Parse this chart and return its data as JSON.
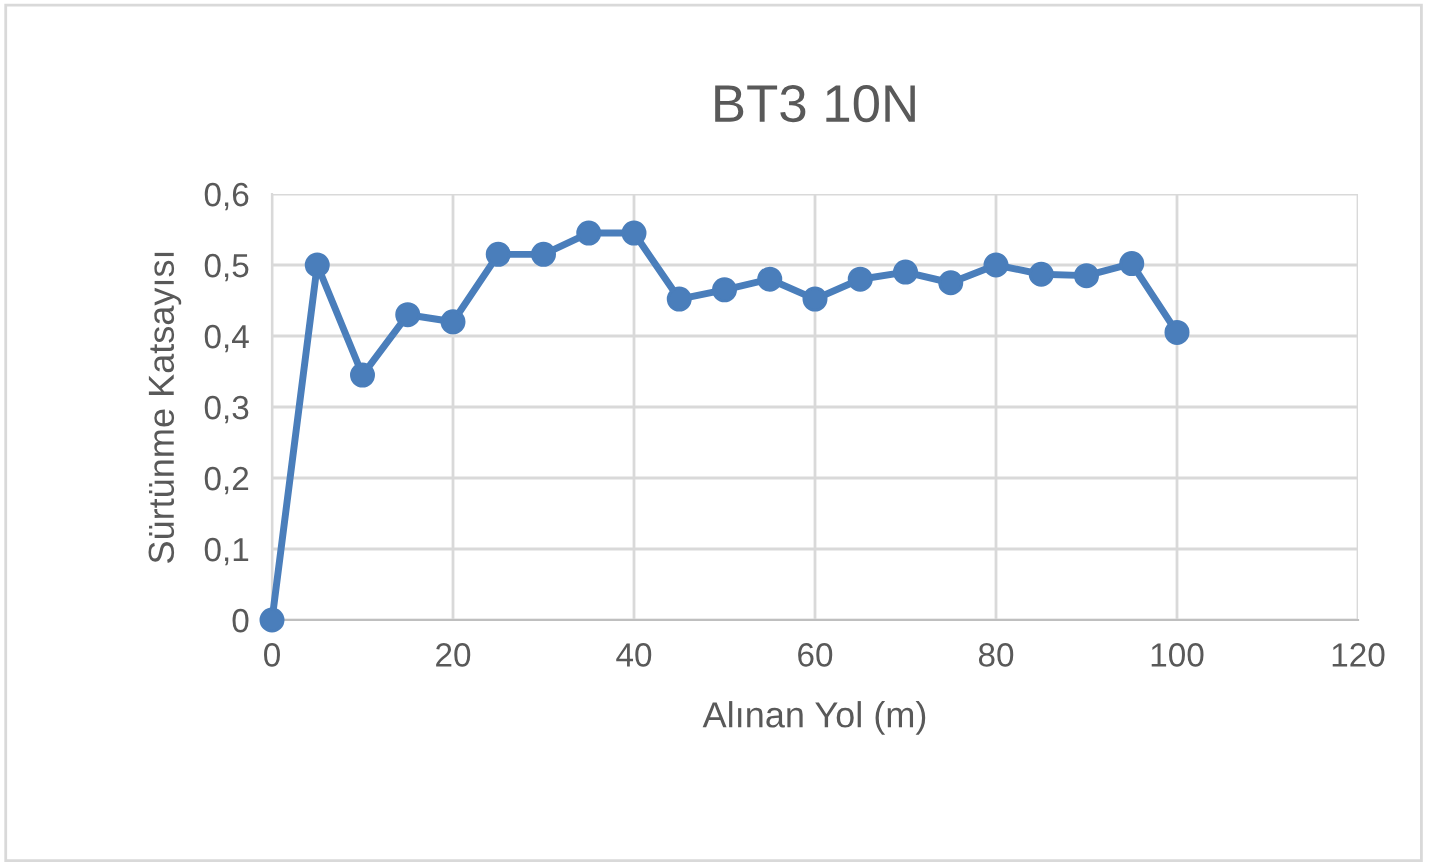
{
  "chart_data": {
    "type": "line",
    "title": "BT3 10N",
    "xlabel": "Alınan Yol (m)",
    "ylabel": "Sürtünme Katsayısı",
    "x": [
      0,
      5,
      10,
      15,
      20,
      25,
      30,
      35,
      40,
      45,
      50,
      55,
      60,
      65,
      70,
      75,
      80,
      85,
      90,
      95,
      100
    ],
    "series": [
      {
        "color": "#4a7ebb",
        "values": [
          0,
          0.5,
          0.345,
          0.43,
          0.42,
          0.515,
          0.515,
          0.545,
          0.545,
          0.452,
          0.465,
          0.48,
          0.452,
          0.48,
          0.49,
          0.475,
          0.5,
          0.487,
          0.485,
          0.502,
          0.405
        ]
      }
    ],
    "xlim": [
      0,
      120
    ],
    "xticks": [
      0,
      20,
      40,
      60,
      80,
      100,
      120
    ],
    "ylim": [
      0,
      0.6
    ],
    "yticks": [
      {
        "value": 0,
        "label": "0"
      },
      {
        "value": 0.1,
        "label": "0,1"
      },
      {
        "value": 0.2,
        "label": "0,2"
      },
      {
        "value": 0.3,
        "label": "0,3"
      },
      {
        "value": 0.4,
        "label": "0,4"
      },
      {
        "value": 0.5,
        "label": "0,5"
      },
      {
        "value": 0.6,
        "label": "0,6"
      }
    ],
    "grid": true,
    "marker": "circle",
    "line_style": "solid",
    "legend": false
  }
}
